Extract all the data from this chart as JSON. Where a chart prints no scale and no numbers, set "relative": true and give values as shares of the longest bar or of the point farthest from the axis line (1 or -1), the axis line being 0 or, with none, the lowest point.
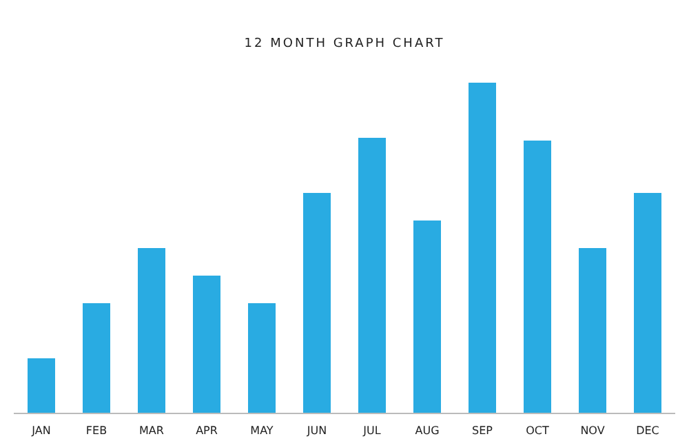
{
  "chart_data": {
    "type": "bar",
    "title": "12 MONTH GRAPH CHART",
    "relative": true,
    "categories": [
      "JAN",
      "FEB",
      "MAR",
      "APR",
      "MAY",
      "JUN",
      "JUL",
      "AUG",
      "SEP",
      "OCT",
      "NOV",
      "DEC"
    ],
    "values": [
      0.1667,
      0.3333,
      0.5,
      0.4167,
      0.3333,
      0.6667,
      0.8333,
      0.5833,
      1,
      0.825,
      0.5,
      0.6667
    ],
    "color": "#29abe2"
  }
}
